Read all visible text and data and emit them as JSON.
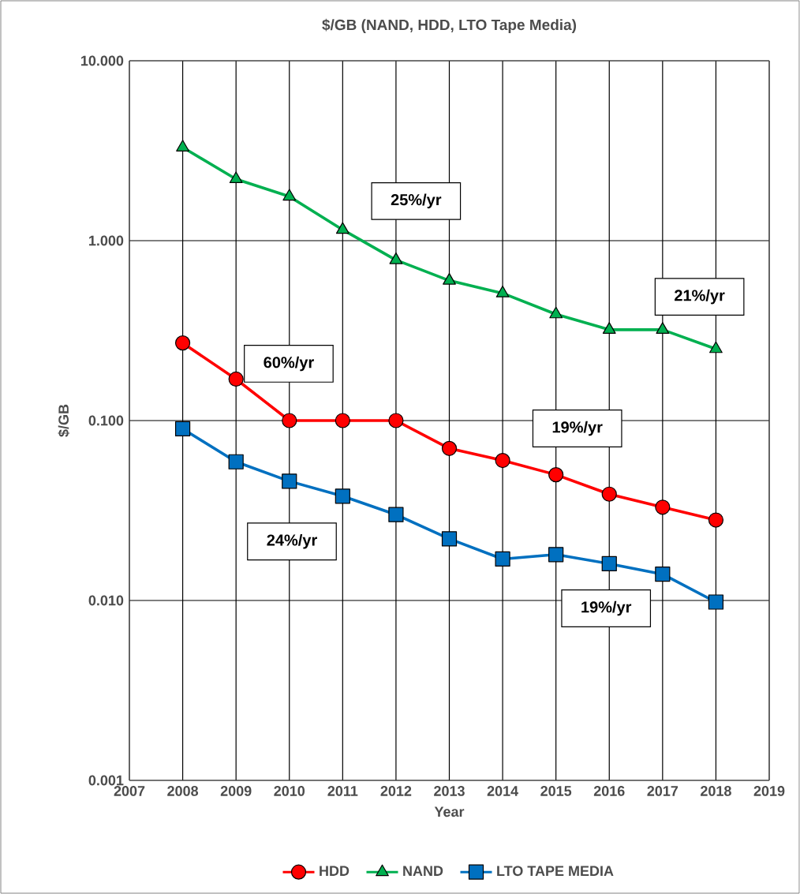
{
  "chart_data": {
    "type": "line",
    "title": "$/GB (NAND, HDD, LTO Tape Media)",
    "xlabel": "Year",
    "ylabel": "$/GB",
    "log": "y",
    "grid": true,
    "legend": "bottom",
    "line_style": "solid",
    "x": [
      2008,
      2009,
      2010,
      2011,
      2012,
      2013,
      2014,
      2015,
      2016,
      2017,
      2018
    ],
    "xlim": [
      2007,
      2019
    ],
    "xticks": [
      2007,
      2008,
      2009,
      2010,
      2011,
      2012,
      2013,
      2014,
      2015,
      2016,
      2017,
      2018,
      2019
    ],
    "ylim": [
      0.001,
      10
    ],
    "yticks": [
      {
        "value": 0.001,
        "label": "0.001"
      },
      {
        "value": 0.01,
        "label": "0.010"
      },
      {
        "value": 0.1,
        "label": "0.100"
      },
      {
        "value": 1,
        "label": "1.000"
      },
      {
        "value": 10,
        "label": "10.000"
      }
    ],
    "series": [
      {
        "name": "HDD",
        "color": "#ff0000",
        "marker": "circle",
        "values": [
          0.27,
          0.17,
          0.1,
          0.1,
          0.1,
          0.07,
          0.06,
          0.05,
          0.039,
          0.033,
          0.028
        ]
      },
      {
        "name": "NAND",
        "color": "#00b050",
        "marker": "triangle",
        "values": [
          3.3,
          2.2,
          1.76,
          1.15,
          0.78,
          0.6,
          0.51,
          0.39,
          0.32,
          0.32,
          0.25
        ]
      },
      {
        "name": "LTO TAPE MEDIA",
        "color": "#0070c0",
        "marker": "square",
        "values": [
          0.09,
          0.059,
          0.046,
          0.038,
          0.03,
          0.022,
          0.017,
          0.018,
          0.016,
          0.014,
          0.0098
        ]
      }
    ],
    "annotations": [
      "25%/yr",
      "21%/yr",
      "60%/yr",
      "19%/yr",
      "24%/yr",
      "19%/yr"
    ]
  }
}
